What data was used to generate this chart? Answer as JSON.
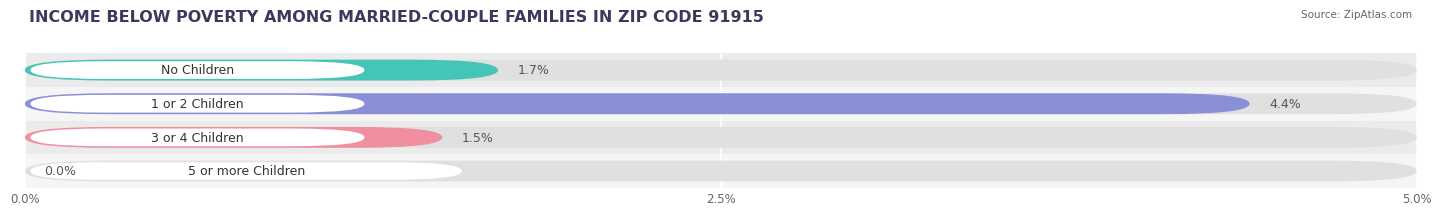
{
  "title": "INCOME BELOW POVERTY AMONG MARRIED-COUPLE FAMILIES IN ZIP CODE 91915",
  "source": "Source: ZipAtlas.com",
  "categories": [
    "No Children",
    "1 or 2 Children",
    "3 or 4 Children",
    "5 or more Children"
  ],
  "values": [
    1.7,
    4.4,
    1.5,
    0.0
  ],
  "bar_colors": [
    "#45c4b8",
    "#8b8fd8",
    "#f08fa0",
    "#f5c897"
  ],
  "xlim": [
    0,
    5.0
  ],
  "xticks": [
    0.0,
    2.5,
    5.0
  ],
  "xtick_labels": [
    "0.0%",
    "2.5%",
    "5.0%"
  ],
  "bar_height": 0.62,
  "background_color": "#ffffff",
  "row_bg_colors": [
    "#ebebeb",
    "#f5f5f5",
    "#ebebeb",
    "#f5f5f5"
  ],
  "bar_bg_color": "#e0e0e0",
  "title_fontsize": 11.5,
  "label_fontsize": 9,
  "value_fontsize": 9
}
